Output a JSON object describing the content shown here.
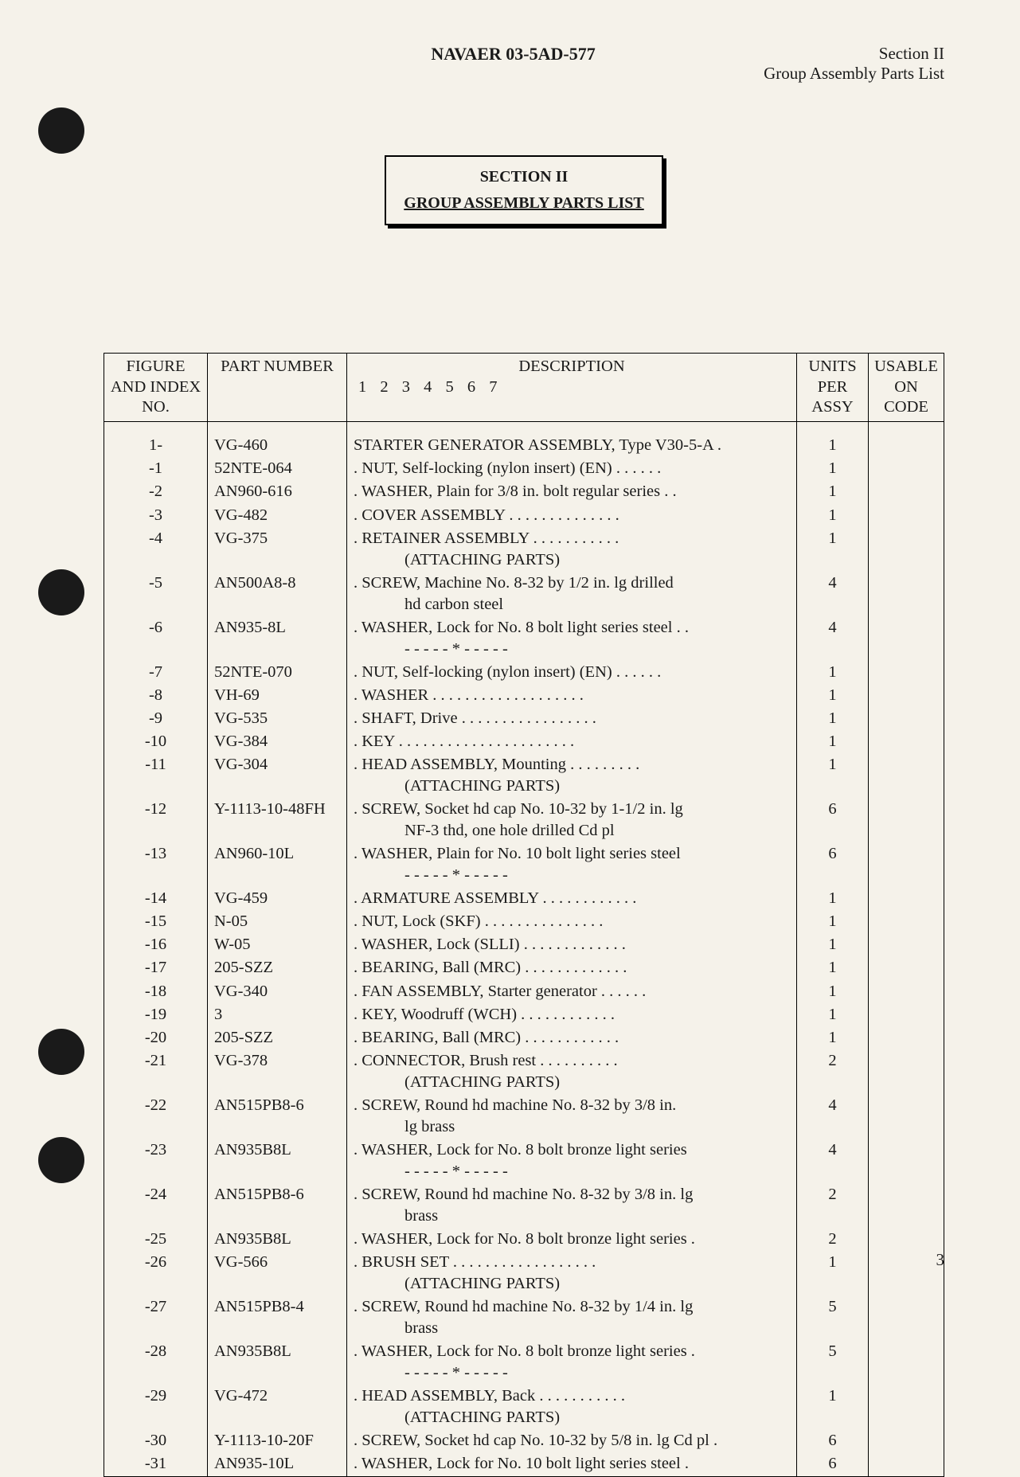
{
  "header": {
    "doc_number": "NAVAER 03-5AD-577",
    "section_label": "Section II",
    "section_subtitle": "Group Assembly Parts List"
  },
  "section_box": {
    "number": "SECTION II",
    "title": "GROUP ASSEMBLY PARTS LIST"
  },
  "table": {
    "columns": {
      "figure_index": "FIGURE AND INDEX NO.",
      "part_number": "PART NUMBER",
      "description": "DESCRIPTION",
      "description_sub": "1 2 3 4 5 6 7",
      "units_per_assy": "UNITS PER ASSY",
      "usable_on_code": "USABLE ON CODE"
    },
    "rows": [
      {
        "idx": "1-",
        "part": "VG-460",
        "desc": "STARTER GENERATOR ASSEMBLY, Type V30-5-A  .",
        "indent": 0,
        "units": "1"
      },
      {
        "idx": "-1",
        "part": "52NTE-064",
        "desc": ".  NUT, Self-locking (nylon insert) (EN)   .  .  .  .  .  .",
        "indent": 1,
        "units": "1"
      },
      {
        "idx": "-2",
        "part": "AN960-616",
        "desc": ".  WASHER, Plain for 3/8 in. bolt regular series   .  .",
        "indent": 1,
        "units": "1"
      },
      {
        "idx": "-3",
        "part": "VG-482",
        "desc": ".  COVER ASSEMBLY   .  .  .  .  .  .  .  .  .  .  .  .  .  .",
        "indent": 1,
        "units": "1"
      },
      {
        "idx": "-4",
        "part": "VG-375",
        "desc": ".  RETAINER ASSEMBLY    .  .  .  .  .  .  .  .  .  .  .",
        "indent": 1,
        "sub": "(ATTACHING PARTS)",
        "units": "1"
      },
      {
        "idx": "-5",
        "part": "AN500A8-8",
        "desc": ".  SCREW, Machine No. 8-32 by 1/2 in. lg drilled",
        "indent": 1,
        "sub": "hd carbon steel",
        "subindent": true,
        "units": "4"
      },
      {
        "idx": "-6",
        "part": "AN935-8L",
        "desc": ".  WASHER, Lock for No. 8 bolt light series steel  .  .",
        "indent": 1,
        "sub": "- - - - - * - - - - -",
        "units": "4"
      },
      {
        "idx": "-7",
        "part": "52NTE-070",
        "desc": ".  NUT, Self-locking (nylon insert) (EN)   .  .  .  .  .  .",
        "indent": 1,
        "units": "1"
      },
      {
        "idx": "-8",
        "part": "VH-69",
        "desc": ".  WASHER    .  .  .  .  .  .  .  .  .  .  .  .  .  .  .  .  .  .  .",
        "indent": 1,
        "units": "1"
      },
      {
        "idx": "-9",
        "part": "VG-535",
        "desc": ".  SHAFT, Drive   .  .  .  .  .  .  .  .  .  .  .  .  .  .  .  .  .",
        "indent": 1,
        "units": "1"
      },
      {
        "idx": "-10",
        "part": "VG-384",
        "desc": ".  KEY  .  .  .  .  .  .  .  .  .  .  .  .  .  .  .  .  .  .  .  .  .  .",
        "indent": 1,
        "units": "1"
      },
      {
        "idx": "-11",
        "part": "VG-304",
        "desc": ".  HEAD ASSEMBLY, Mounting   .  .  .  .  .  .  .  .  .",
        "indent": 1,
        "sub": "(ATTACHING PARTS)",
        "units": "1"
      },
      {
        "idx": "-12",
        "part": "Y-1113-10-48FH",
        "desc": ".  SCREW, Socket hd cap No. 10-32 by 1-1/2 in. lg",
        "indent": 1,
        "sub": "NF-3 thd, one hole drilled Cd pl",
        "subindent": true,
        "units": "6"
      },
      {
        "idx": "-13",
        "part": "AN960-10L",
        "desc": ".  WASHER, Plain for No. 10 bolt light series steel",
        "indent": 1,
        "sub": "- - - - - * - - - - -",
        "units": "6"
      },
      {
        "idx": "-14",
        "part": "VG-459",
        "desc": ".  ARMATURE ASSEMBLY  .  .  .  .  .  .  .  .  .  .  .  .",
        "indent": 1,
        "units": "1"
      },
      {
        "idx": "-15",
        "part": "N-05",
        "desc": ".  NUT, Lock (SKF)   .  .  .  .  .  .  .  .  .  .  .  .  .  .  .",
        "indent": 1,
        "units": "1"
      },
      {
        "idx": "-16",
        "part": "W-05",
        "desc": ".  WASHER, Lock (SLLI)  .  .  .  .  .  .  .  .  .  .  .  .  .",
        "indent": 1,
        "units": "1"
      },
      {
        "idx": "-17",
        "part": "205-SZZ",
        "desc": ".  BEARING, Ball (MRC)  .  .  .  .  .  .  .  .  .  .  .  .  .",
        "indent": 1,
        "units": "1"
      },
      {
        "idx": "-18",
        "part": "VG-340",
        "desc": ".  FAN ASSEMBLY, Starter generator  .  .  .  .  .  .",
        "indent": 1,
        "units": "1"
      },
      {
        "idx": "-19",
        "part": "3",
        "desc": ".  KEY, Woodruff (WCH)   .  .  .  .  .  .  .  .  .  .  .  .",
        "indent": 1,
        "units": "1"
      },
      {
        "idx": "-20",
        "part": "205-SZZ",
        "desc": ".  BEARING, Ball (MRC)   .  .  .  .  .  .  .  .  .  .  .  .",
        "indent": 1,
        "units": "1"
      },
      {
        "idx": "-21",
        "part": "VG-378",
        "desc": ".  CONNECTOR, Brush rest   .  .  .  .  .  .  .  .  .  .",
        "indent": 1,
        "sub": "(ATTACHING PARTS)",
        "units": "2"
      },
      {
        "idx": "-22",
        "part": "AN515PB8-6",
        "desc": ".  SCREW, Round hd machine No. 8-32 by 3/8 in.",
        "indent": 1,
        "sub": "lg brass",
        "subindent": true,
        "units": "4"
      },
      {
        "idx": "-23",
        "part": "AN935B8L",
        "desc": ".  WASHER, Lock for No. 8 bolt bronze light series",
        "indent": 1,
        "sub": "- - - - - * - - - - -",
        "units": "4"
      },
      {
        "idx": "-24",
        "part": "AN515PB8-6",
        "desc": ".  SCREW, Round hd machine No. 8-32 by 3/8 in. lg",
        "indent": 1,
        "sub": "brass",
        "subindent": true,
        "units": "2"
      },
      {
        "idx": "-25",
        "part": "AN935B8L",
        "desc": ".  WASHER, Lock for No. 8 bolt bronze light series  .",
        "indent": 1,
        "units": "2"
      },
      {
        "idx": "-26",
        "part": "VG-566",
        "desc": ".  BRUSH SET  .  .  .  .  .  .  .  .  .  .  .  .  .  .  .  .  .  .",
        "indent": 1,
        "sub": "(ATTACHING PARTS)",
        "units": "1"
      },
      {
        "idx": "-27",
        "part": "AN515PB8-4",
        "desc": ".  SCREW, Round hd machine No. 8-32 by 1/4 in. lg",
        "indent": 1,
        "sub": "brass",
        "subindent": true,
        "units": "5"
      },
      {
        "idx": "-28",
        "part": "AN935B8L",
        "desc": ".  WASHER, Lock for No. 8 bolt bronze light series  .",
        "indent": 1,
        "sub": "- - - - - * - - - - -",
        "units": "5"
      },
      {
        "idx": "-29",
        "part": "VG-472",
        "desc": ".  HEAD ASSEMBLY, Back   .  .  .  .  .  .  .  .  .  .  .",
        "indent": 1,
        "sub": "(ATTACHING PARTS)",
        "units": "1"
      },
      {
        "idx": "-30",
        "part": "Y-1113-10-20F",
        "desc": ".  SCREW, Socket hd cap No. 10-32 by 5/8 in. lg Cd pl  .",
        "indent": 1,
        "units": "6"
      },
      {
        "idx": "-31",
        "part": "AN935-10L",
        "desc": ".  WASHER, Lock for No. 10 bolt light series steel   .",
        "indent": 1,
        "units": "6"
      }
    ]
  },
  "page_number": "3",
  "style": {
    "background_color": "#f5f2ea",
    "text_color": "#1a1a1a",
    "hole_color": "#1a1a1a",
    "border_color": "#000000",
    "font_family": "Times New Roman",
    "base_fontsize": 21
  }
}
